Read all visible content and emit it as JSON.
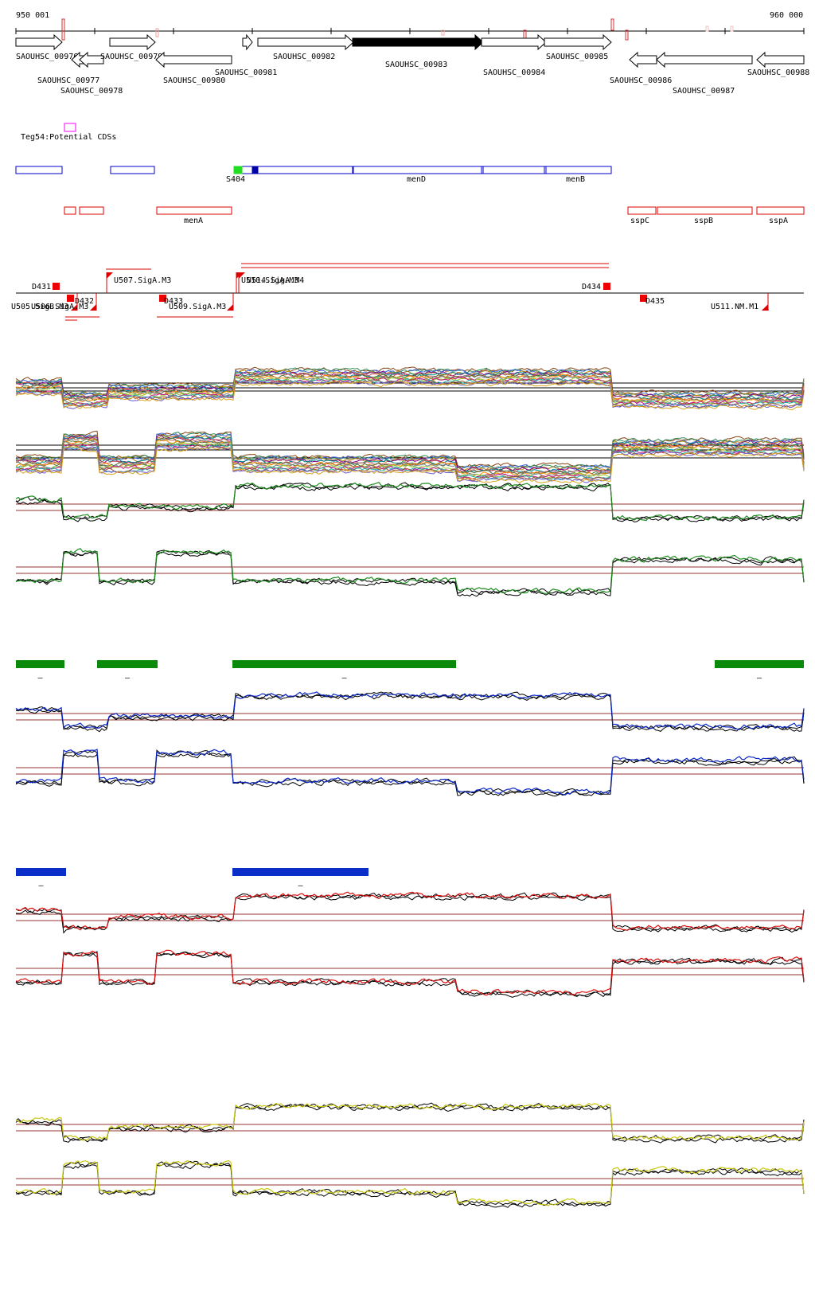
{
  "ruler": {
    "start_label": "950 001",
    "end_label": "960 000"
  },
  "genes": [
    {
      "id": "g976",
      "label": "SAOUHSC_00976",
      "fill": "#ffffff",
      "dir": "right"
    },
    {
      "id": "g977",
      "label": "SAOUHSC_00977",
      "fill": "#ffffff",
      "dir": "left"
    },
    {
      "id": "g978",
      "label": "SAOUHSC_00978",
      "fill": "#ffffff",
      "dir": "left"
    },
    {
      "id": "g979",
      "label": "SAOUHSC_00979",
      "fill": "#ffffff",
      "dir": "right"
    },
    {
      "id": "g980",
      "label": "SAOUHSC_00980",
      "fill": "#ffffff",
      "dir": "left"
    },
    {
      "id": "g981",
      "label": "SAOUHSC_00981",
      "fill": "#ffffff",
      "dir": "right"
    },
    {
      "id": "g982",
      "label": "SAOUHSC_00982",
      "fill": "#ffffff",
      "dir": "right"
    },
    {
      "id": "g983",
      "label": "SAOUHSC_00983",
      "fill": "#000000",
      "dir": "right"
    },
    {
      "id": "g984",
      "label": "SAOUHSC_00984",
      "fill": "#ffffff",
      "dir": "right"
    },
    {
      "id": "g985",
      "label": "SAOUHSC_00985",
      "fill": "#ffffff",
      "dir": "right"
    },
    {
      "id": "g986",
      "label": "SAOUHSC_00986",
      "fill": "#ffffff",
      "dir": "left"
    },
    {
      "id": "g987",
      "label": "SAOUHSC_00987",
      "fill": "#ffffff",
      "dir": "left"
    },
    {
      "id": "g988",
      "label": "SAOUHSC_00988",
      "fill": "#ffffff",
      "dir": "left"
    }
  ],
  "potential_cds": {
    "label": "Teg54:Potential CDSs",
    "color": "#ff00ff"
  },
  "blue_annotations": {
    "color": "#0000cc",
    "labels": {
      "s404": "S404",
      "menD": "menD",
      "menB": "menB"
    }
  },
  "red_annotations": {
    "color": "#dd0000",
    "labels": {
      "menA": "menA",
      "sspC": "sspC",
      "sspB": "sspB",
      "sspA": "sspA"
    }
  },
  "features": [
    {
      "id": "D431",
      "label": "D431"
    },
    {
      "id": "D432",
      "label": "D432"
    },
    {
      "id": "D433",
      "label": "D433"
    },
    {
      "id": "D434",
      "label": "D434"
    },
    {
      "id": "D435",
      "label": "D435"
    },
    {
      "id": "U505",
      "label": "U505.SigB.M3"
    },
    {
      "id": "U506",
      "label": "U506.SigA.M3"
    },
    {
      "id": "U507",
      "label": "U507.SigA.M3"
    },
    {
      "id": "U509",
      "label": "U509.SigA.M3"
    },
    {
      "id": "U510",
      "label": "U510.SigA.M3"
    },
    {
      "id": "U511",
      "label": "U511.NM.M1"
    },
    {
      "id": "U514",
      "label": "U514.SigA.M4"
    }
  ],
  "track_colors": {
    "green": "#1e8c1e",
    "blue": "#0a28c8",
    "red": "#dd1010",
    "yellow": "#c8c814",
    "ref": "#993333"
  },
  "segment_bars": [
    {
      "color": "#0a8a0a",
      "marker": "–"
    },
    {
      "color": "#0a2fc8",
      "marker": "–"
    }
  ]
}
